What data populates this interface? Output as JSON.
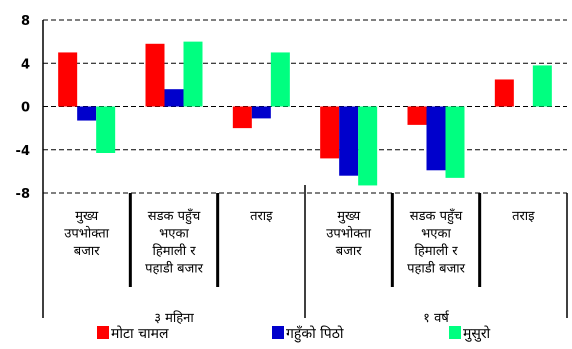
{
  "chart_data": {
    "type": "bar",
    "categories": [
      [
        "मुख्य",
        "उपभोक्ता",
        "बजार"
      ],
      [
        "सडक पहुँच",
        "भएका",
        "हिमाली र",
        "पहाडी बजार"
      ],
      [
        "तराइ"
      ],
      [
        "मुख्य",
        "उपभोक्ता",
        "बजार"
      ],
      [
        "सडक पहुँच",
        "भएका",
        "हिमाली र",
        "पहाडी बजार"
      ],
      [
        "तराइ"
      ]
    ],
    "groups": [
      {
        "label": "३ महिना",
        "span": [
          0,
          2
        ]
      },
      {
        "label": "१ वर्ष",
        "span": [
          3,
          5
        ]
      }
    ],
    "series": [
      {
        "name": "मोटा चामल",
        "color": "#ff0000",
        "values": [
          5.0,
          5.8,
          -2.0,
          -4.8,
          -1.7,
          2.5
        ]
      },
      {
        "name": "गहुँको पिठो",
        "color": "#0000cc",
        "values": [
          -1.3,
          1.6,
          -1.1,
          -6.4,
          -5.9,
          0
        ]
      },
      {
        "name": "मुसुरो",
        "color": "#00ff80",
        "values": [
          -4.3,
          6.0,
          5.0,
          -7.3,
          -6.6,
          3.8
        ]
      }
    ],
    "yticks": [
      8,
      4,
      0,
      -4,
      -8
    ],
    "ylim": [
      -8,
      8
    ],
    "grid": true,
    "legend": "bottom"
  }
}
